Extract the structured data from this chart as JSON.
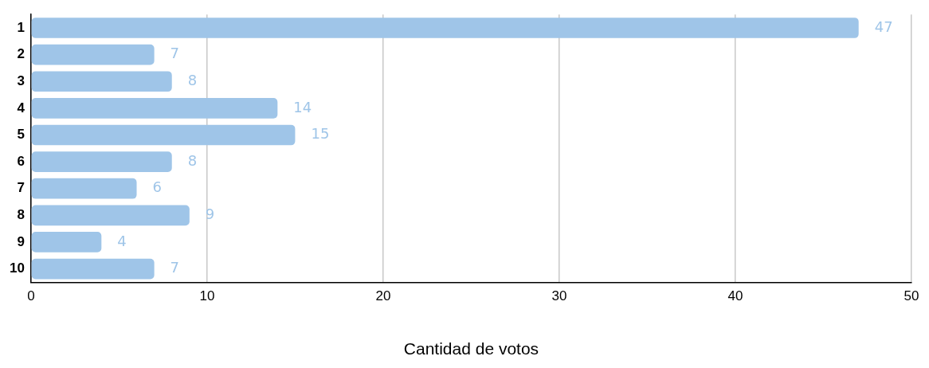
{
  "chart_data": {
    "type": "bar",
    "orientation": "horizontal",
    "xlabel": "Cantidad de votos",
    "categories": [
      "1",
      "2",
      "3",
      "4",
      "5",
      "6",
      "7",
      "8",
      "9",
      "10"
    ],
    "values": [
      47,
      7,
      8,
      14,
      15,
      8,
      6,
      9,
      4,
      7
    ],
    "color": "#9fc5e8",
    "xlim": [
      0,
      50
    ],
    "xticks": [
      0,
      10,
      20,
      30,
      40,
      50
    ],
    "grid": "x",
    "data_labels": true,
    "legend": false
  }
}
